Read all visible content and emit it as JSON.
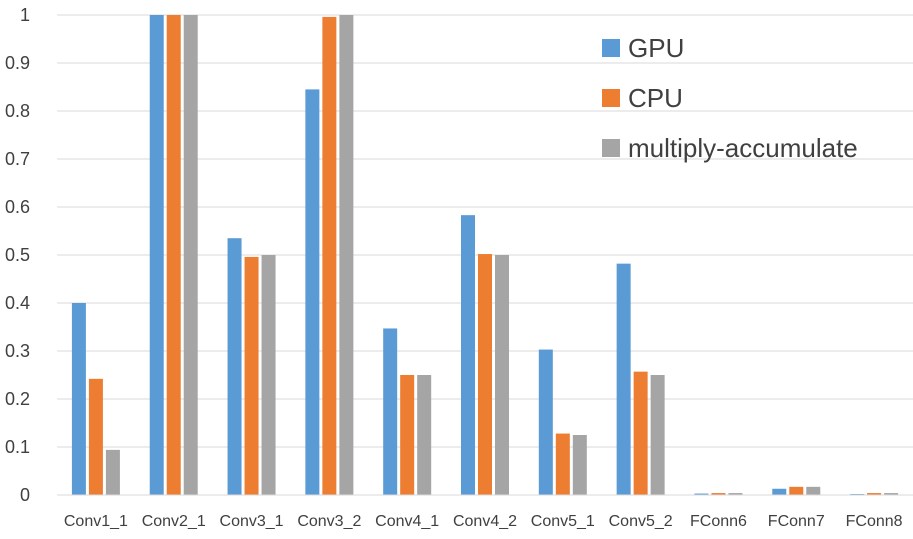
{
  "chart_data": {
    "type": "bar",
    "title": "",
    "xlabel": "",
    "ylabel": "",
    "ylim": [
      0,
      1
    ],
    "yticks": [
      "0",
      "0.1",
      "0.2",
      "0.3",
      "0.4",
      "0.5",
      "0.6",
      "0.7",
      "0.8",
      "0.9",
      "1"
    ],
    "grid": true,
    "legend_position": "top-right",
    "categories": [
      "Conv1_1",
      "Conv2_1",
      "Conv3_1",
      "Conv3_2",
      "Conv4_1",
      "Conv4_2",
      "Conv5_1",
      "Conv5_2",
      "FConn6",
      "FConn7",
      "FConn8"
    ],
    "series": [
      {
        "name": "GPU",
        "color": "#5B9BD5",
        "values": [
          0.4,
          1.0,
          0.535,
          0.845,
          0.347,
          0.583,
          0.303,
          0.482,
          0.003,
          0.013,
          0.002
        ]
      },
      {
        "name": "CPU",
        "color": "#ED7D31",
        "values": [
          0.242,
          1.0,
          0.496,
          0.996,
          0.25,
          0.502,
          0.128,
          0.257,
          0.004,
          0.017,
          0.004
        ]
      },
      {
        "name": "multiply-accumulate",
        "color": "#A5A5A5",
        "values": [
          0.094,
          1.0,
          0.5,
          1.0,
          0.25,
          0.5,
          0.125,
          0.25,
          0.004,
          0.017,
          0.004
        ]
      }
    ]
  }
}
